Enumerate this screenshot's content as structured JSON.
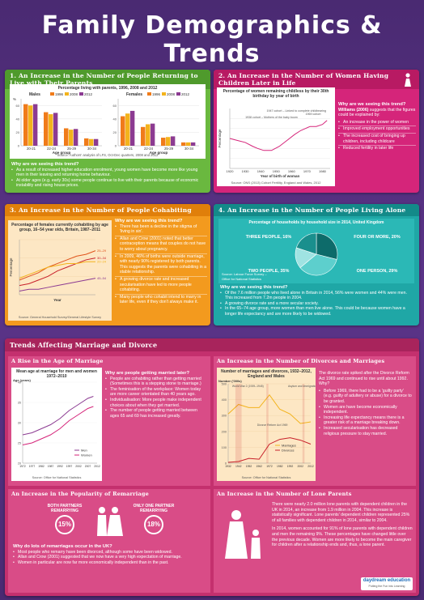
{
  "title": "Family Demographics & Trends",
  "s1": {
    "heading": "1. An Increase in the Number of People Returning to Live with Their Parents",
    "chart_title": "Percentage living with parents, 1996, 2008 and 2012",
    "males": "Males",
    "females": "Females",
    "years": [
      "1996",
      "2008",
      "2012"
    ],
    "age_groups": [
      "20-21",
      "22-24",
      "25-29",
      "30-34"
    ],
    "x_label": "Age group",
    "y_label": "%",
    "source": "Source: Authors' analysis of LFS, Oct-Dec quarters, 2008 and 2012",
    "why": "Why are we seeing this trend?",
    "bullets": [
      "As a result of increased higher education enrolment, young women have become more like young men in their leaving and returning home behaviour.",
      "At older ages (e.g. early 30s) some people continue to live with their parents because of economic instability and rising house prices."
    ]
  },
  "s2": {
    "heading": "2. An Increase in the Number of Women Having Children Later in Life",
    "chart_title": "Percentage of women remaining childless by their 30th birthday by year of birth",
    "annot1": "1947 cohort – Linked to complete childbearing",
    "annot2": "1969 cohort",
    "annot3": "1938 cohort – Mothers of the baby boom",
    "x_label": "Year of birth of woman",
    "y_label": "Percentage",
    "x_ticks": [
      "1920",
      "1930",
      "1940",
      "1950",
      "1960",
      "1970",
      "1980"
    ],
    "source": "Source: ONS (2013) Cohort Fertility, England and Wales, 2012",
    "why": "Why are we seeing this trend?",
    "intro_bold": "Williams (2006)",
    "intro": " suggests that the figures could be explained by:",
    "bullets": [
      "An increase in the power of women",
      "Improved employment opportunities",
      "The increased cost of bringing up children, including childcare",
      "Reduced fertility in later life"
    ]
  },
  "s3": {
    "heading": "3. An Increase in the Number of People Cohabiting",
    "chart_title": "Percentage of females currently cohabiting by age group, 16–54 year olds, Britain, 1987–2011",
    "series_labels": [
      "25–29",
      "30–34",
      "20–24",
      "45–54"
    ],
    "x_label": "Year",
    "y_label": "Percentage",
    "source": "Source: General Household Survey/General Lifestyle Survey",
    "why": "Why are we seeing this trend?",
    "bullets": [
      "There has been a decline in the stigma of 'living in sin'.",
      "Allan and Crow (2001) noted that better contraception means that couples do not have to worry about pregnancy.",
      "In 2009, 46% of births were outside marriage, with nearly 90% registered by both parents. This suggests the parents were cohabiting in a stable relationship.",
      "A growing divorce rate and increased secularisation have led to more people cohabiting.",
      "Many people who cohabit intend to marry in later life, even if they don't always make it."
    ]
  },
  "s4": {
    "heading": "4. An Increase in the Number of People Living Alone",
    "chart_title": "Percentage of households by household size in 2014, United Kingdom",
    "labels": [
      "Three people, 16%",
      "Four or more, 20%",
      "Two people, 35%",
      "One person, 29%"
    ],
    "source": "Source: Labour Force Survey – Office for National Statistics",
    "why": "Why are we seeing this trend?",
    "bullets": [
      "Of the 7.6 million people who lived alone in Britain in 2014, 56% were women and 44% were men. This increased from 7.2m people in 2004.",
      "A growing divorce rate and a more secular society.",
      "In the 65–74 age group, more women than men live alone. This could be because women have a longer life expectancy and are more likely to be widowed."
    ]
  },
  "chart_data": [
    {
      "type": "bar",
      "title": "Percentage living with parents, 1996, 2008 and 2012",
      "subtitle": "Males",
      "categories": [
        "20-21",
        "22-24",
        "25-29",
        "30-34"
      ],
      "xlabel": "Age group",
      "ylabel": "%",
      "ylim": [
        0,
        70
      ],
      "series": [
        {
          "name": "1996",
          "values": [
            62,
            50,
            26,
            11
          ]
        },
        {
          "name": "2008",
          "values": [
            60,
            47,
            24,
            10
          ]
        },
        {
          "name": "2012",
          "values": [
            62,
            49,
            25,
            10
          ]
        }
      ]
    },
    {
      "type": "bar",
      "title": "Percentage living with parents, 1996, 2008 and 2012",
      "subtitle": "Females",
      "categories": [
        "20-21",
        "22-24",
        "25-29",
        "30-34"
      ],
      "xlabel": "Age group",
      "ylabel": "%",
      "ylim": [
        0,
        70
      ],
      "series": [
        {
          "name": "1996",
          "values": [
            44,
            28,
            12,
            5
          ]
        },
        {
          "name": "2008",
          "values": [
            48,
            32,
            13,
            5
          ]
        },
        {
          "name": "2012",
          "values": [
            52,
            33,
            14,
            5
          ]
        }
      ]
    },
    {
      "type": "line",
      "title": "Percentage of women remaining childless by their 30th birthday by year of birth",
      "xlabel": "Year of birth of woman",
      "ylabel": "Percentage",
      "x": [
        1920,
        1925,
        1930,
        1935,
        1938,
        1942,
        1947,
        1952,
        1957,
        1962,
        1966,
        1969,
        1972,
        1976,
        1980,
        1983
      ],
      "ylim": [
        0,
        60
      ],
      "series": [
        {
          "values": [
            30,
            28,
            26,
            22,
            20,
            18,
            18,
            22,
            28,
            34,
            38,
            40,
            42,
            42,
            44,
            48
          ]
        }
      ]
    },
    {
      "type": "line",
      "title": "Percentage of females currently cohabiting by age group, 16–54 year olds, Britain, 1987–2011",
      "xlabel": "Year",
      "ylabel": "Percentage",
      "x": [
        1987,
        1990,
        1993,
        1996,
        1999,
        2002,
        2005,
        2008,
        2011
      ],
      "ylim": [
        0,
        30
      ],
      "series": [
        {
          "name": "25–29",
          "values": [
            8,
            10,
            12,
            15,
            17,
            19,
            21,
            22,
            24
          ]
        },
        {
          "name": "30–34",
          "values": [
            5,
            6,
            8,
            10,
            13,
            15,
            17,
            19,
            20
          ]
        },
        {
          "name": "20–24",
          "values": [
            9,
            11,
            13,
            15,
            16,
            17,
            17,
            18,
            18
          ]
        },
        {
          "name": "45–54",
          "values": [
            2,
            3,
            3,
            4,
            5,
            6,
            7,
            8,
            9
          ]
        }
      ]
    },
    {
      "type": "pie",
      "title": "Percentage of households by household size in 2014, United Kingdom",
      "categories": [
        "One person",
        "Two people",
        "Three people",
        "Four or more"
      ],
      "values": [
        29,
        35,
        16,
        20
      ]
    },
    {
      "type": "line",
      "title": "Mean age at marriage for men and women 1972–2010",
      "xlabel": "",
      "ylabel": "Age (years)",
      "x": [
        1972,
        1977,
        1982,
        1987,
        1992,
        1997,
        2002,
        2007,
        2010
      ],
      "ylim": [
        20,
        40
      ],
      "series": [
        {
          "name": "Men",
          "values": [
            27,
            27.5,
            28.5,
            29.5,
            31,
            33,
            34.5,
            36,
            36.5
          ]
        },
        {
          "name": "Women",
          "values": [
            24.5,
            25,
            26,
            27,
            28.5,
            30.5,
            32,
            33.5,
            34
          ]
        }
      ]
    },
    {
      "type": "line",
      "title": "Number of marriages and divorces, 1932–2012, England and Wales",
      "xlabel": "",
      "ylabel": "Number ('000s)",
      "x": [
        1932,
        1942,
        1952,
        1962,
        1972,
        1982,
        1992,
        2002,
        2012
      ],
      "ylim": [
        0,
        500
      ],
      "series": [
        {
          "name": "Marriages",
          "values": [
            310,
            370,
            350,
            350,
            430,
            340,
            310,
            250,
            260
          ]
        },
        {
          "name": "Divorces",
          "values": [
            5,
            10,
            30,
            25,
            120,
            150,
            160,
            145,
            120
          ]
        }
      ]
    }
  ],
  "s5": {
    "heading": "Trends Affecting Marriage and Divorce",
    "age_heading": "A Rise in the Age of Marriage",
    "age_chart_title": "Mean age at marriage for men and women 1972–2010",
    "age_y_label": "Age (years)",
    "age_x_ticks": [
      "1972",
      "1977",
      "1982",
      "1987",
      "1992",
      "1997",
      "2002",
      "2007",
      "2012"
    ],
    "age_legend": [
      "Men",
      "Women"
    ],
    "age_source": "Source: Office for National Statistics",
    "age_why": "Why are people getting married later?",
    "age_bullets": [
      "People are cohabiting rather than getting married (Sometimes this is a stepping stone to marriage.)",
      "The feminisation of the workplace: Women today are more career orientated than 40 years ago.",
      "Individualisation: More people make independent choices about when they get married.",
      "The number of people getting married between ages 65 and 69 has increased greatly."
    ],
    "div_heading": "An Increase in the Number of Divorces and Marriages",
    "div_chart_title": "Number of marriages and divorces, 1932–2012, England and Wales",
    "div_y_label": "Number ('000s)",
    "div_annots": [
      "World War 2 (1939–1945)",
      "Asylum and Immigration Act 2004",
      "Divorce Reform Act 1969"
    ],
    "div_legend": [
      "Marriages",
      "Divorces"
    ],
    "div_x_ticks": [
      "1932",
      "1942",
      "1952",
      "1962",
      "1972",
      "1982",
      "1992",
      "2002",
      "2012"
    ],
    "div_source": "Source: Office for National Statistics",
    "div_text": "The divorce rate spiked after the Divorce Reform Act 1969 and continued to rise until about 1992. Why?",
    "div_bullets": [
      "Before 1969, there had to be a 'guilty party' (e.g. guilty of adultery or abuse) for a divorce to be granted.",
      "Women are have become economically independent.",
      "Increasing life expectancy means there is a greater risk of a marriage breaking down.",
      "Increased secularisation has decreased religious pressure to stay married."
    ],
    "rem_heading": "An Increase in the Popularity of Remarriage",
    "rem_both": "Both partners remarrying",
    "rem_one": "Only one partner remarrying",
    "rem_both_pct": "15%",
    "rem_one_pct": "18%",
    "rem_why": "Why do lots of remarriages occur in the UK?",
    "rem_bullets": [
      "Most people who remarry have been divorced, although some have been widowed.",
      "Allan and Crow (2001) suggested that we now have a very high expectation of marriage.",
      "Women in particular are now far more economically independent than in the past."
    ],
    "lone_heading": "An Increase in the Number of Lone Parents",
    "lone_p1": "There were nearly 2.0 million lone parents with dependent children in the UK in 2014, an increase from 1.9 million in 2004. This increase is statistically significant. Lone parents' dependent children represented 25% of all families with dependent children in 2014, similar to 2004.",
    "lone_p2": "In 2014, women accounted for 91% of lone parents with dependent children and men the remaining 9%. These percentages have changed little over the previous decade. Women are more likely to become the main caregiver for children after a relationship ends and, thus, a lone parent.",
    "logo": "daydream education",
    "logo_sub": "Putting the Fun into Learning"
  },
  "colors": {
    "bg": "#4a2a72",
    "green": "#6ab83f",
    "pink": "#d5257a",
    "orange": "#f39a1e",
    "teal": "#1fa7a6",
    "magenta": "#c4306e",
    "orange_bar": "#f07b1a",
    "purple_bar": "#8c3b92"
  }
}
